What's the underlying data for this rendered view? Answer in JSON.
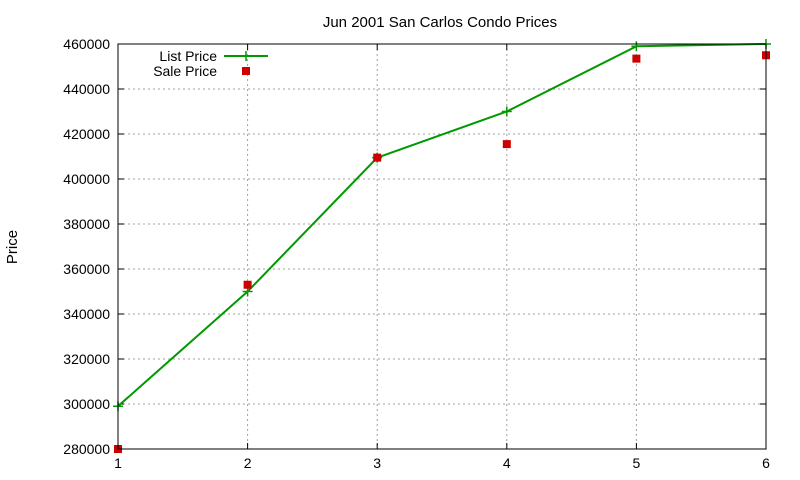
{
  "chart_data": {
    "type": "line",
    "title": "Jun 2001 San Carlos Condo Prices",
    "xlabel": "",
    "ylabel": "Price",
    "x": [
      1,
      2,
      3,
      4,
      5,
      6
    ],
    "xlim": [
      1,
      6
    ],
    "ylim": [
      280000,
      460000
    ],
    "x_ticks": [
      "1",
      "2",
      "3",
      "4",
      "5",
      "6"
    ],
    "y_ticks": [
      "280000",
      "300000",
      "320000",
      "340000",
      "360000",
      "380000",
      "400000",
      "420000",
      "440000",
      "460000"
    ],
    "grid": true,
    "legend_position": "top-left",
    "series": [
      {
        "name": "List Price",
        "style": "line-plus",
        "color": "#009900",
        "values": [
          299000,
          350000,
          409500,
          430000,
          459000,
          460000
        ]
      },
      {
        "name": "Sale Price",
        "style": "points-square",
        "color": "#cc0000",
        "values": [
          280000,
          353000,
          409500,
          415500,
          453500,
          455000
        ]
      }
    ]
  }
}
